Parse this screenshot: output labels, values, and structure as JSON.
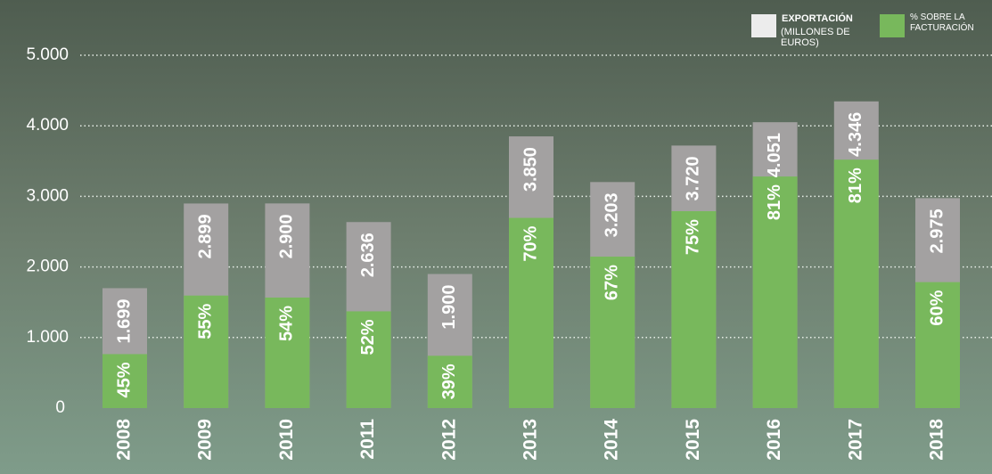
{
  "chart_data": {
    "type": "bar",
    "categories": [
      "2008",
      "2009",
      "2010",
      "2011",
      "2012",
      "2013",
      "2014",
      "2015",
      "2016",
      "2017",
      "2018"
    ],
    "series": [
      {
        "name": "EXPORTACIÓN",
        "unit": "(MILLONES DE EUROS)",
        "color": "#a3a1a1",
        "values": [
          1699,
          2899,
          2900,
          2636,
          1900,
          3850,
          3203,
          3720,
          4051,
          4346,
          2975
        ],
        "value_labels": [
          "1.699",
          "2.899",
          "2.900",
          "2.636",
          "1.900",
          "3.850",
          "3.203",
          "3.720",
          "4.051",
          "4.346",
          "2.975"
        ]
      },
      {
        "name": "% SOBRE LA FACTURACIÓN",
        "color": "#78b85c",
        "values": [
          45,
          55,
          54,
          52,
          39,
          70,
          67,
          75,
          81,
          81,
          60
        ],
        "value_labels": [
          "45%",
          "55%",
          "54%",
          "52%",
          "39%",
          "70%",
          "67%",
          "75%",
          "81%",
          "81%",
          "60%"
        ]
      }
    ],
    "ylim": [
      0,
      5000
    ],
    "yticks": [
      0,
      {
        "value": 1000,
        "label": "1.000"
      },
      {
        "value": 2000,
        "label": "2.000"
      },
      {
        "value": 3000,
        "label": "3.000"
      },
      {
        "value": 4000,
        "label": "4.000"
      },
      {
        "value": 5000,
        "label": "5.000"
      }
    ],
    "grid": true,
    "legend": "top-right"
  }
}
